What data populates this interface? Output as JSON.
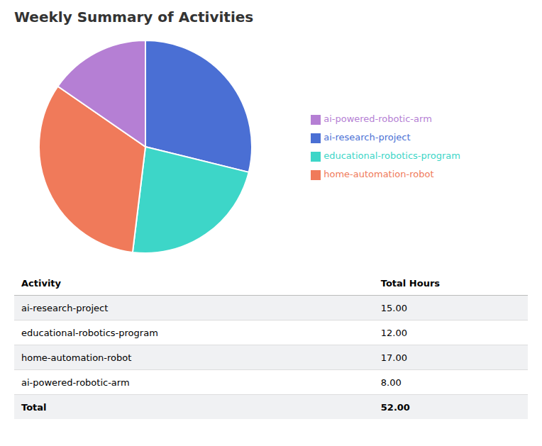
{
  "chart_data": [
    {
      "type": "pie",
      "title": "Weekly Summary of Activities",
      "categories": [
        "ai-research-project",
        "educational-robotics-program",
        "home-automation-robot",
        "ai-powered-robotic-arm"
      ],
      "values": [
        15.0,
        12.0,
        17.0,
        8.0
      ],
      "colors": [
        "#4a6fd4",
        "#3dd6c8",
        "#f07a5a",
        "#b57fd4"
      ],
      "legend": "right"
    },
    {
      "type": "table",
      "columns": [
        "Activity",
        "Total Hours"
      ],
      "categories": [
        "ai-research-project",
        "educational-robotics-program",
        "home-automation-robot",
        "ai-powered-robotic-arm"
      ],
      "values": [
        15.0,
        12.0,
        17.0,
        8.0
      ],
      "value_labels": [
        "15.00",
        "12.00",
        "17.00",
        "8.00"
      ],
      "total_label": "Total",
      "total": 52.0,
      "total_value_label": "52.00"
    }
  ]
}
